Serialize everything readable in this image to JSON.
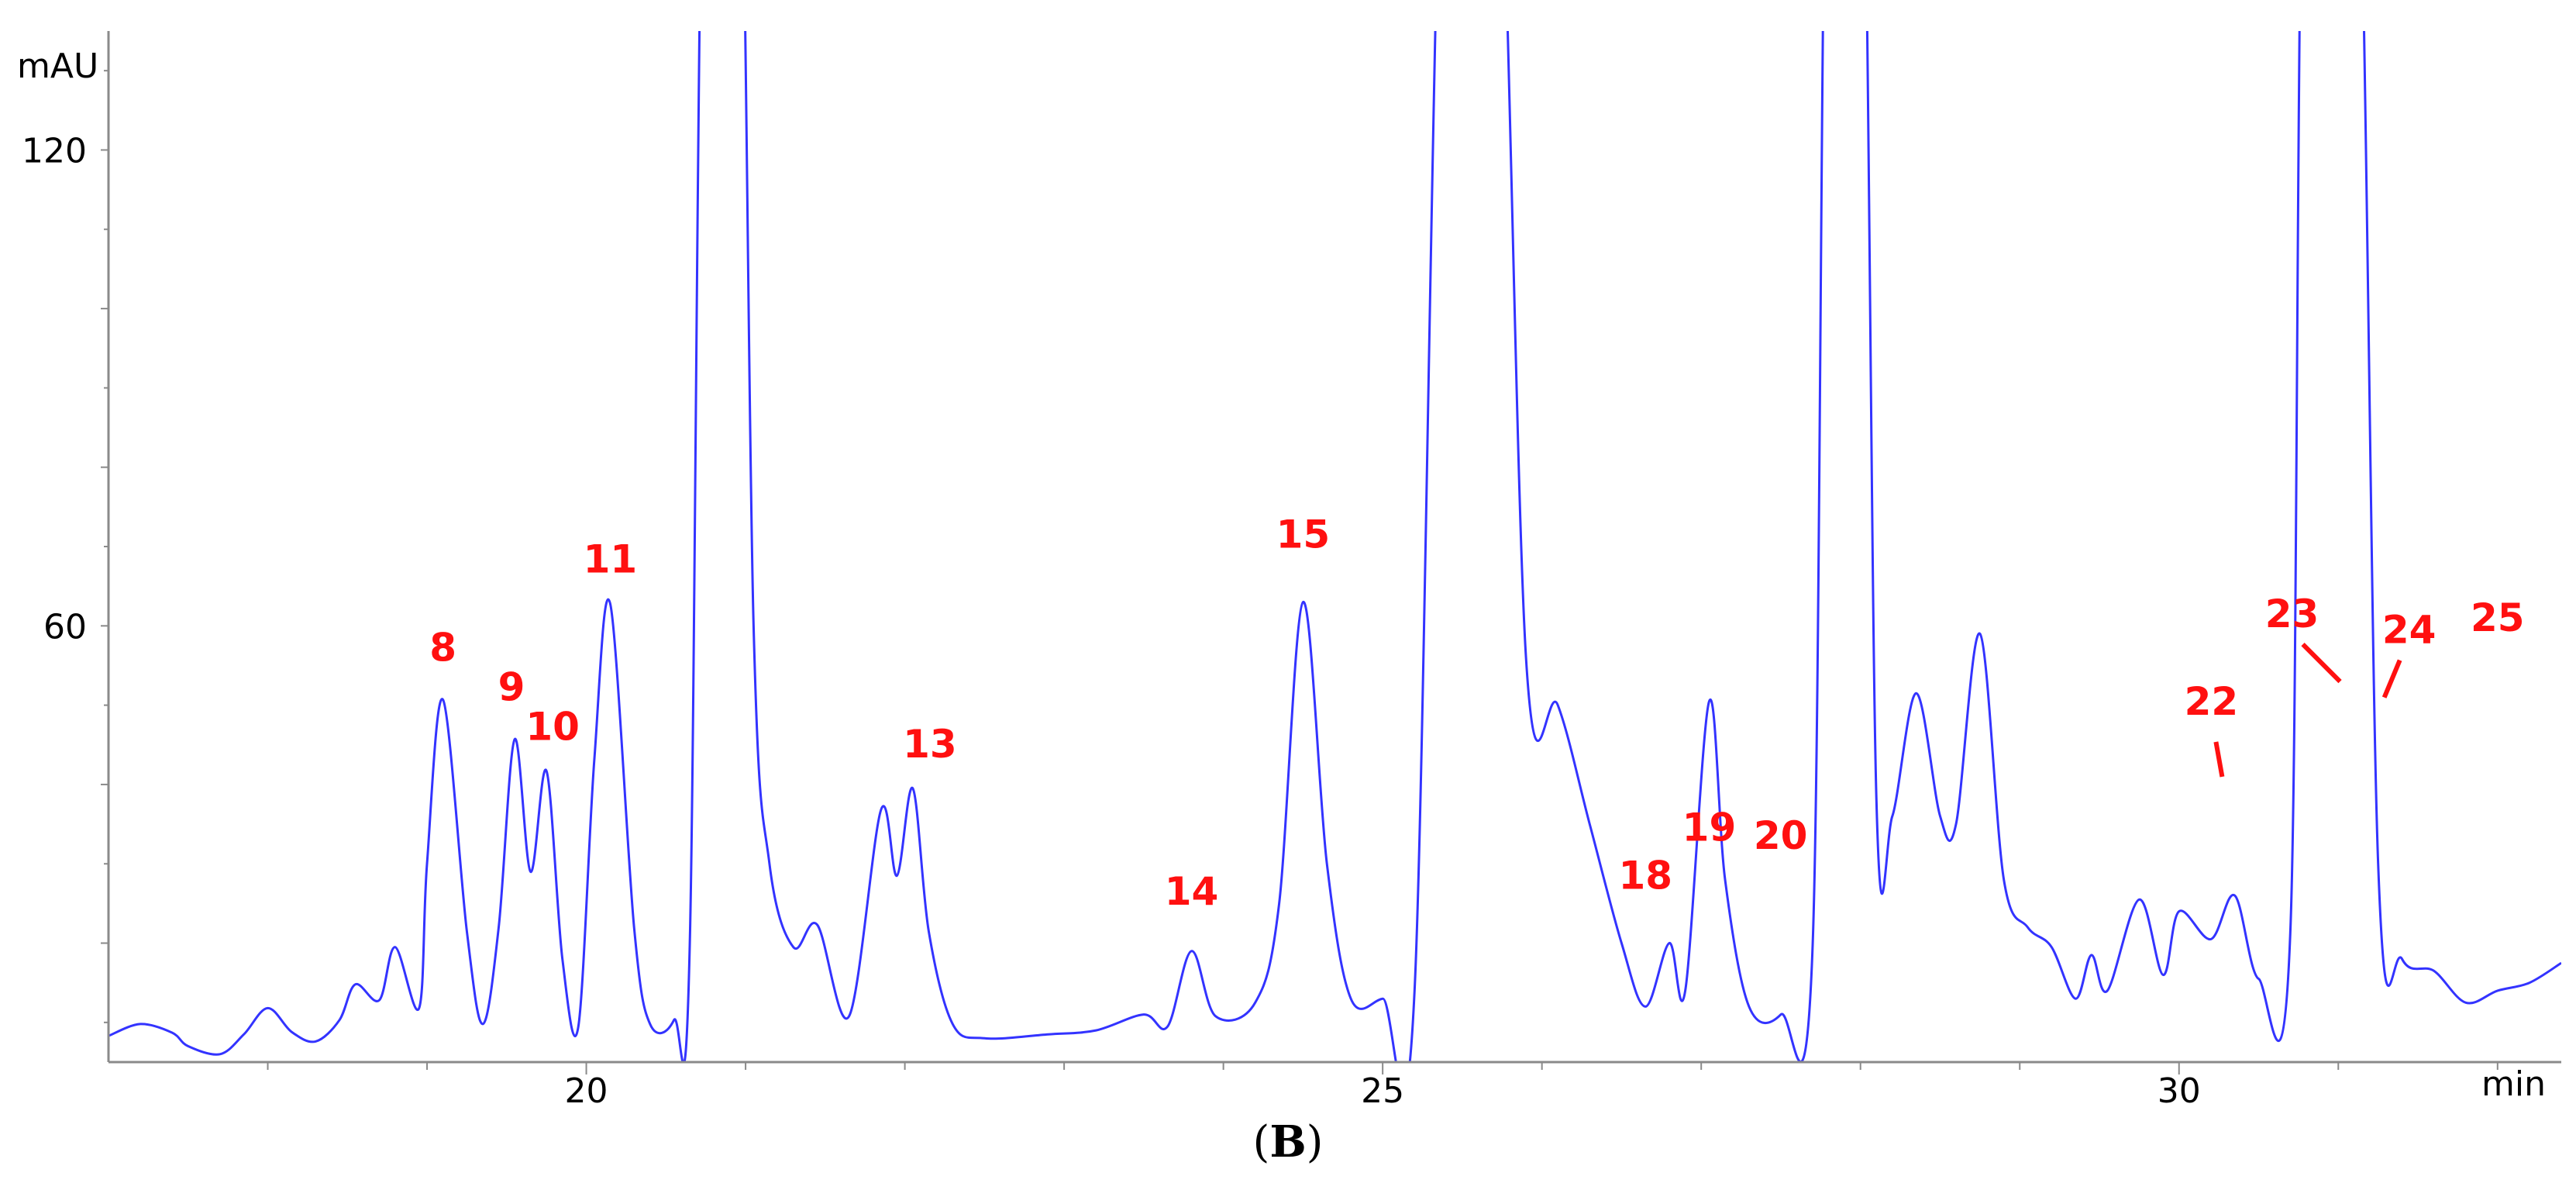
{
  "chart_data": {
    "type": "line",
    "title": "",
    "ylabel": "mAU",
    "xlabel": "min",
    "caption_letter": "B",
    "xlim": [
      17.0,
      32.4
    ],
    "ylim": [
      5,
      135
    ],
    "x_ticks": [
      {
        "value": 20,
        "label": "20"
      },
      {
        "value": 25,
        "label": "25"
      },
      {
        "value": 30,
        "label": "30"
      }
    ],
    "y_ticks": [
      {
        "value": 60,
        "label": "60"
      },
      {
        "value": 120,
        "label": "120"
      }
    ],
    "grid": false,
    "line_color": "#3333ff",
    "label_color": "#ff1010",
    "series": [
      {
        "name": "",
        "points": [
          [
            17.0,
            8.3
          ],
          [
            17.2,
            9.8
          ],
          [
            17.4,
            8.7
          ],
          [
            17.5,
            7.0
          ],
          [
            17.7,
            6.0
          ],
          [
            17.85,
            8.5
          ],
          [
            18.0,
            11.8
          ],
          [
            18.15,
            8.8
          ],
          [
            18.3,
            7.6
          ],
          [
            18.45,
            10.3
          ],
          [
            18.55,
            14.8
          ],
          [
            18.7,
            12.8
          ],
          [
            18.8,
            19.5
          ],
          [
            18.95,
            11.8
          ],
          [
            19.0,
            30.0
          ],
          [
            19.1,
            50.7
          ],
          [
            19.25,
            21.5
          ],
          [
            19.35,
            9.8
          ],
          [
            19.45,
            22.0
          ],
          [
            19.55,
            45.7
          ],
          [
            19.65,
            29.0
          ],
          [
            19.75,
            41.7
          ],
          [
            19.85,
            18.0
          ],
          [
            19.95,
            9.5
          ],
          [
            20.05,
            43.0
          ],
          [
            20.15,
            62.8
          ],
          [
            20.3,
            22.0
          ],
          [
            20.4,
            9.8
          ],
          [
            20.55,
            10.3
          ],
          [
            20.65,
            20.0
          ],
          [
            20.75,
            180.0
          ],
          [
            20.95,
            180.0
          ],
          [
            21.05,
            60.0
          ],
          [
            21.15,
            30.0
          ],
          [
            21.3,
            19.5
          ],
          [
            21.45,
            22.3
          ],
          [
            21.65,
            10.8
          ],
          [
            21.85,
            36.8
          ],
          [
            21.95,
            28.5
          ],
          [
            22.05,
            39.5
          ],
          [
            22.15,
            21.5
          ],
          [
            22.3,
            9.8
          ],
          [
            22.5,
            8.0
          ],
          [
            22.9,
            8.5
          ],
          [
            23.2,
            9.0
          ],
          [
            23.5,
            11.0
          ],
          [
            23.65,
            9.5
          ],
          [
            23.8,
            19.0
          ],
          [
            23.95,
            10.8
          ],
          [
            24.2,
            12.5
          ],
          [
            24.35,
            25.0
          ],
          [
            24.5,
            63.0
          ],
          [
            24.65,
            30.0
          ],
          [
            24.8,
            13.0
          ],
          [
            25.0,
            13.0
          ],
          [
            25.2,
            14.0
          ],
          [
            25.4,
            180.0
          ],
          [
            25.7,
            180.0
          ],
          [
            25.9,
            56.0
          ],
          [
            26.1,
            50.0
          ],
          [
            26.3,
            35.0
          ],
          [
            26.5,
            20.0
          ],
          [
            26.65,
            12.0
          ],
          [
            26.8,
            20.0
          ],
          [
            26.9,
            14.0
          ],
          [
            27.05,
            50.5
          ],
          [
            27.15,
            28.0
          ],
          [
            27.3,
            12.0
          ],
          [
            27.5,
            11.0
          ],
          [
            27.7,
            20.0
          ],
          [
            27.8,
            180.0
          ],
          [
            28.0,
            180.0
          ],
          [
            28.1,
            38.0
          ],
          [
            28.2,
            36.0
          ],
          [
            28.35,
            51.5
          ],
          [
            28.5,
            36.0
          ],
          [
            28.6,
            35.0
          ],
          [
            28.75,
            59.0
          ],
          [
            28.9,
            28.0
          ],
          [
            29.05,
            22.0
          ],
          [
            29.2,
            19.5
          ],
          [
            29.35,
            13.0
          ],
          [
            29.45,
            18.5
          ],
          [
            29.55,
            14.0
          ],
          [
            29.75,
            25.5
          ],
          [
            29.9,
            16.0
          ],
          [
            30.0,
            24.0
          ],
          [
            30.2,
            20.5
          ],
          [
            30.35,
            26.0
          ],
          [
            30.5,
            15.5
          ],
          [
            30.7,
            22.0
          ],
          [
            30.8,
            180.0
          ],
          [
            31.1,
            180.0
          ],
          [
            31.25,
            30.0
          ],
          [
            31.4,
            18.0
          ],
          [
            31.6,
            16.5
          ],
          [
            31.8,
            12.5
          ],
          [
            32.0,
            14.0
          ],
          [
            32.2,
            15.0
          ],
          [
            32.4,
            17.5
          ]
        ]
      }
    ],
    "peak_labels": [
      {
        "text": "8",
        "x": 19.1,
        "y": 50.7
      },
      {
        "text": "9",
        "x": 19.55,
        "y": 45.7
      },
      {
        "text": "10",
        "x": 19.75,
        "y": 41.7
      },
      {
        "text": "11",
        "x": 20.15,
        "y": 62.8
      },
      {
        "text": "13",
        "x": 22.05,
        "y": 39.5
      },
      {
        "text": "14",
        "x": 23.8,
        "y": 19.0
      },
      {
        "text": "15",
        "x": 24.5,
        "y": 63.0
      },
      {
        "text": "18",
        "x": 26.65,
        "y": 20.0
      },
      {
        "text": "19",
        "x": 27.05,
        "y": 28.0
      },
      {
        "text": "20",
        "x": 27.45,
        "y": 26.0
      },
      {
        "text": "22",
        "x": 30.3,
        "y": 40.0
      },
      {
        "text": "23",
        "x": 31.05,
        "y": 52.0
      },
      {
        "text": "24",
        "x": 31.25,
        "y": 50.0
      },
      {
        "text": "25",
        "x": 32.0,
        "y": 52.5
      }
    ]
  }
}
